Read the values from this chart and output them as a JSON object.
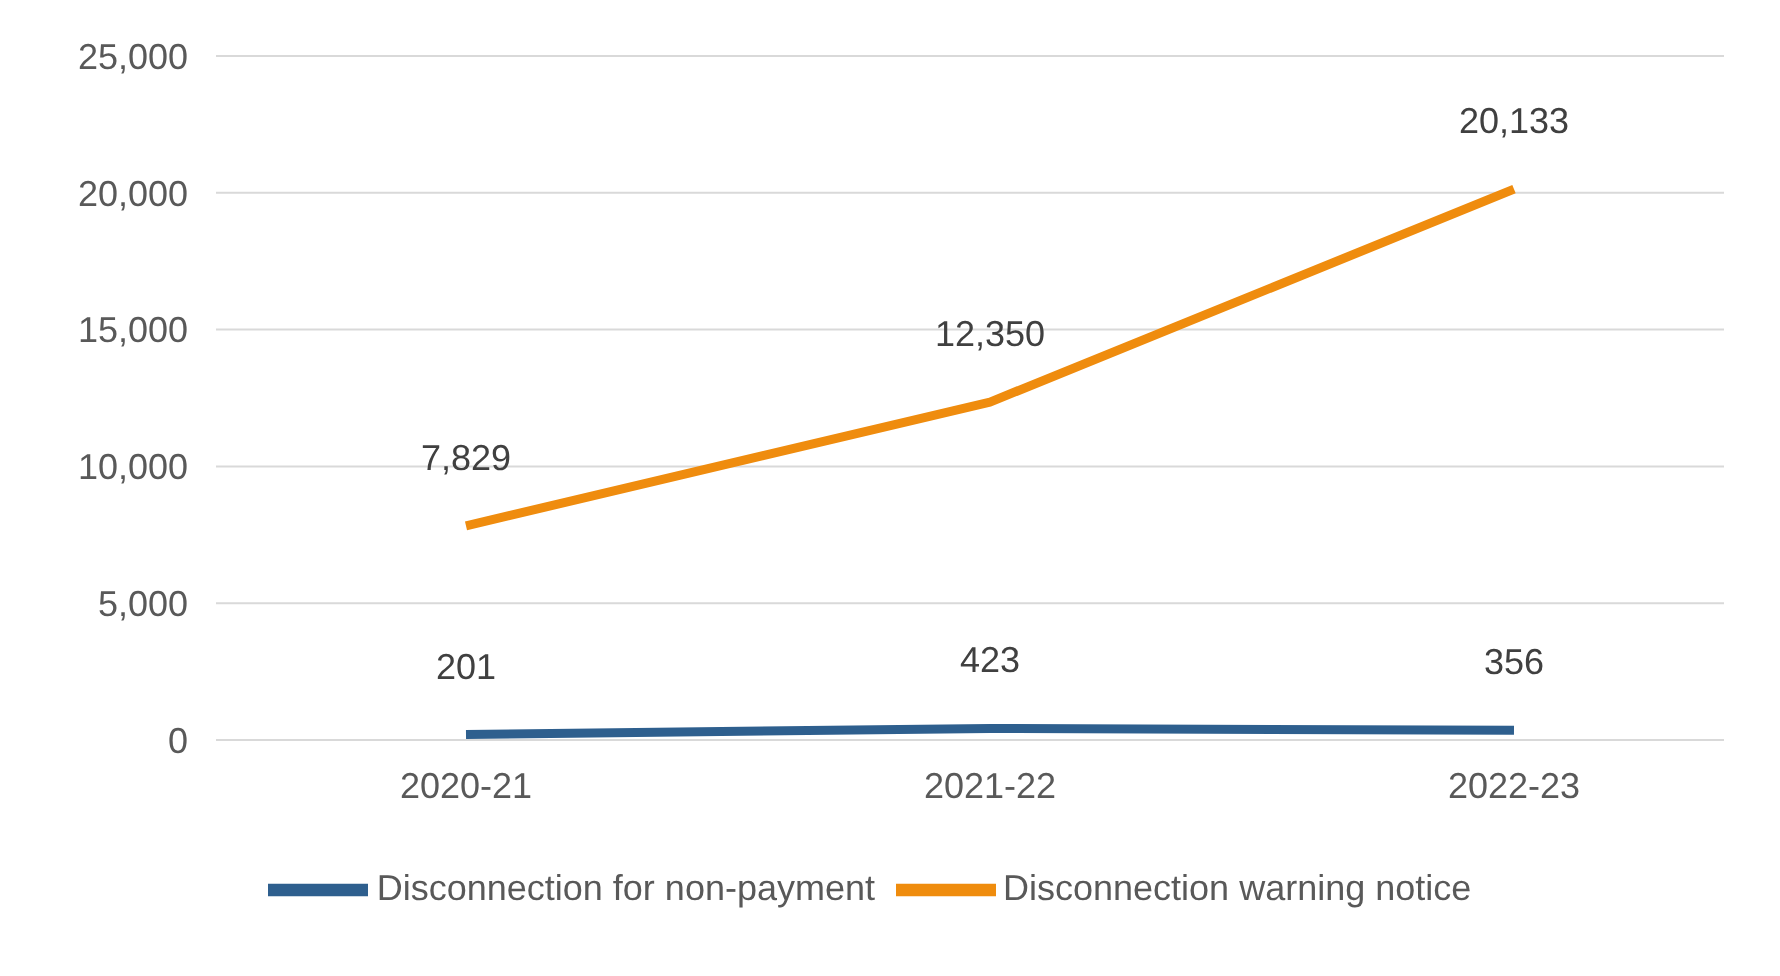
{
  "chart_data": {
    "type": "line",
    "categories": [
      "2020-21",
      "2021-22",
      "2022-23"
    ],
    "series": [
      {
        "name": "Disconnection for non-payment",
        "color": "#2e5f8e",
        "values": [
          201,
          423,
          356
        ],
        "value_labels": [
          "201",
          "423",
          "356"
        ]
      },
      {
        "name": "Disconnection warning notice",
        "color": "#ef8c0e",
        "values": [
          7829,
          12350,
          20133
        ],
        "value_labels": [
          "7,829",
          "12,350",
          "20,133"
        ]
      }
    ],
    "ylim": [
      0,
      25000
    ],
    "yticks": [
      0,
      {
        "value": 5000,
        "label": "5,000"
      },
      {
        "value": 10000,
        "label": "10,000"
      },
      {
        "value": 15000,
        "label": "15,000"
      },
      {
        "value": 20000,
        "label": "20,000"
      },
      {
        "value": 25000,
        "label": "25,000"
      }
    ],
    "grid": "y",
    "legend": "bottom",
    "marker": "none",
    "line_style": "solid"
  }
}
